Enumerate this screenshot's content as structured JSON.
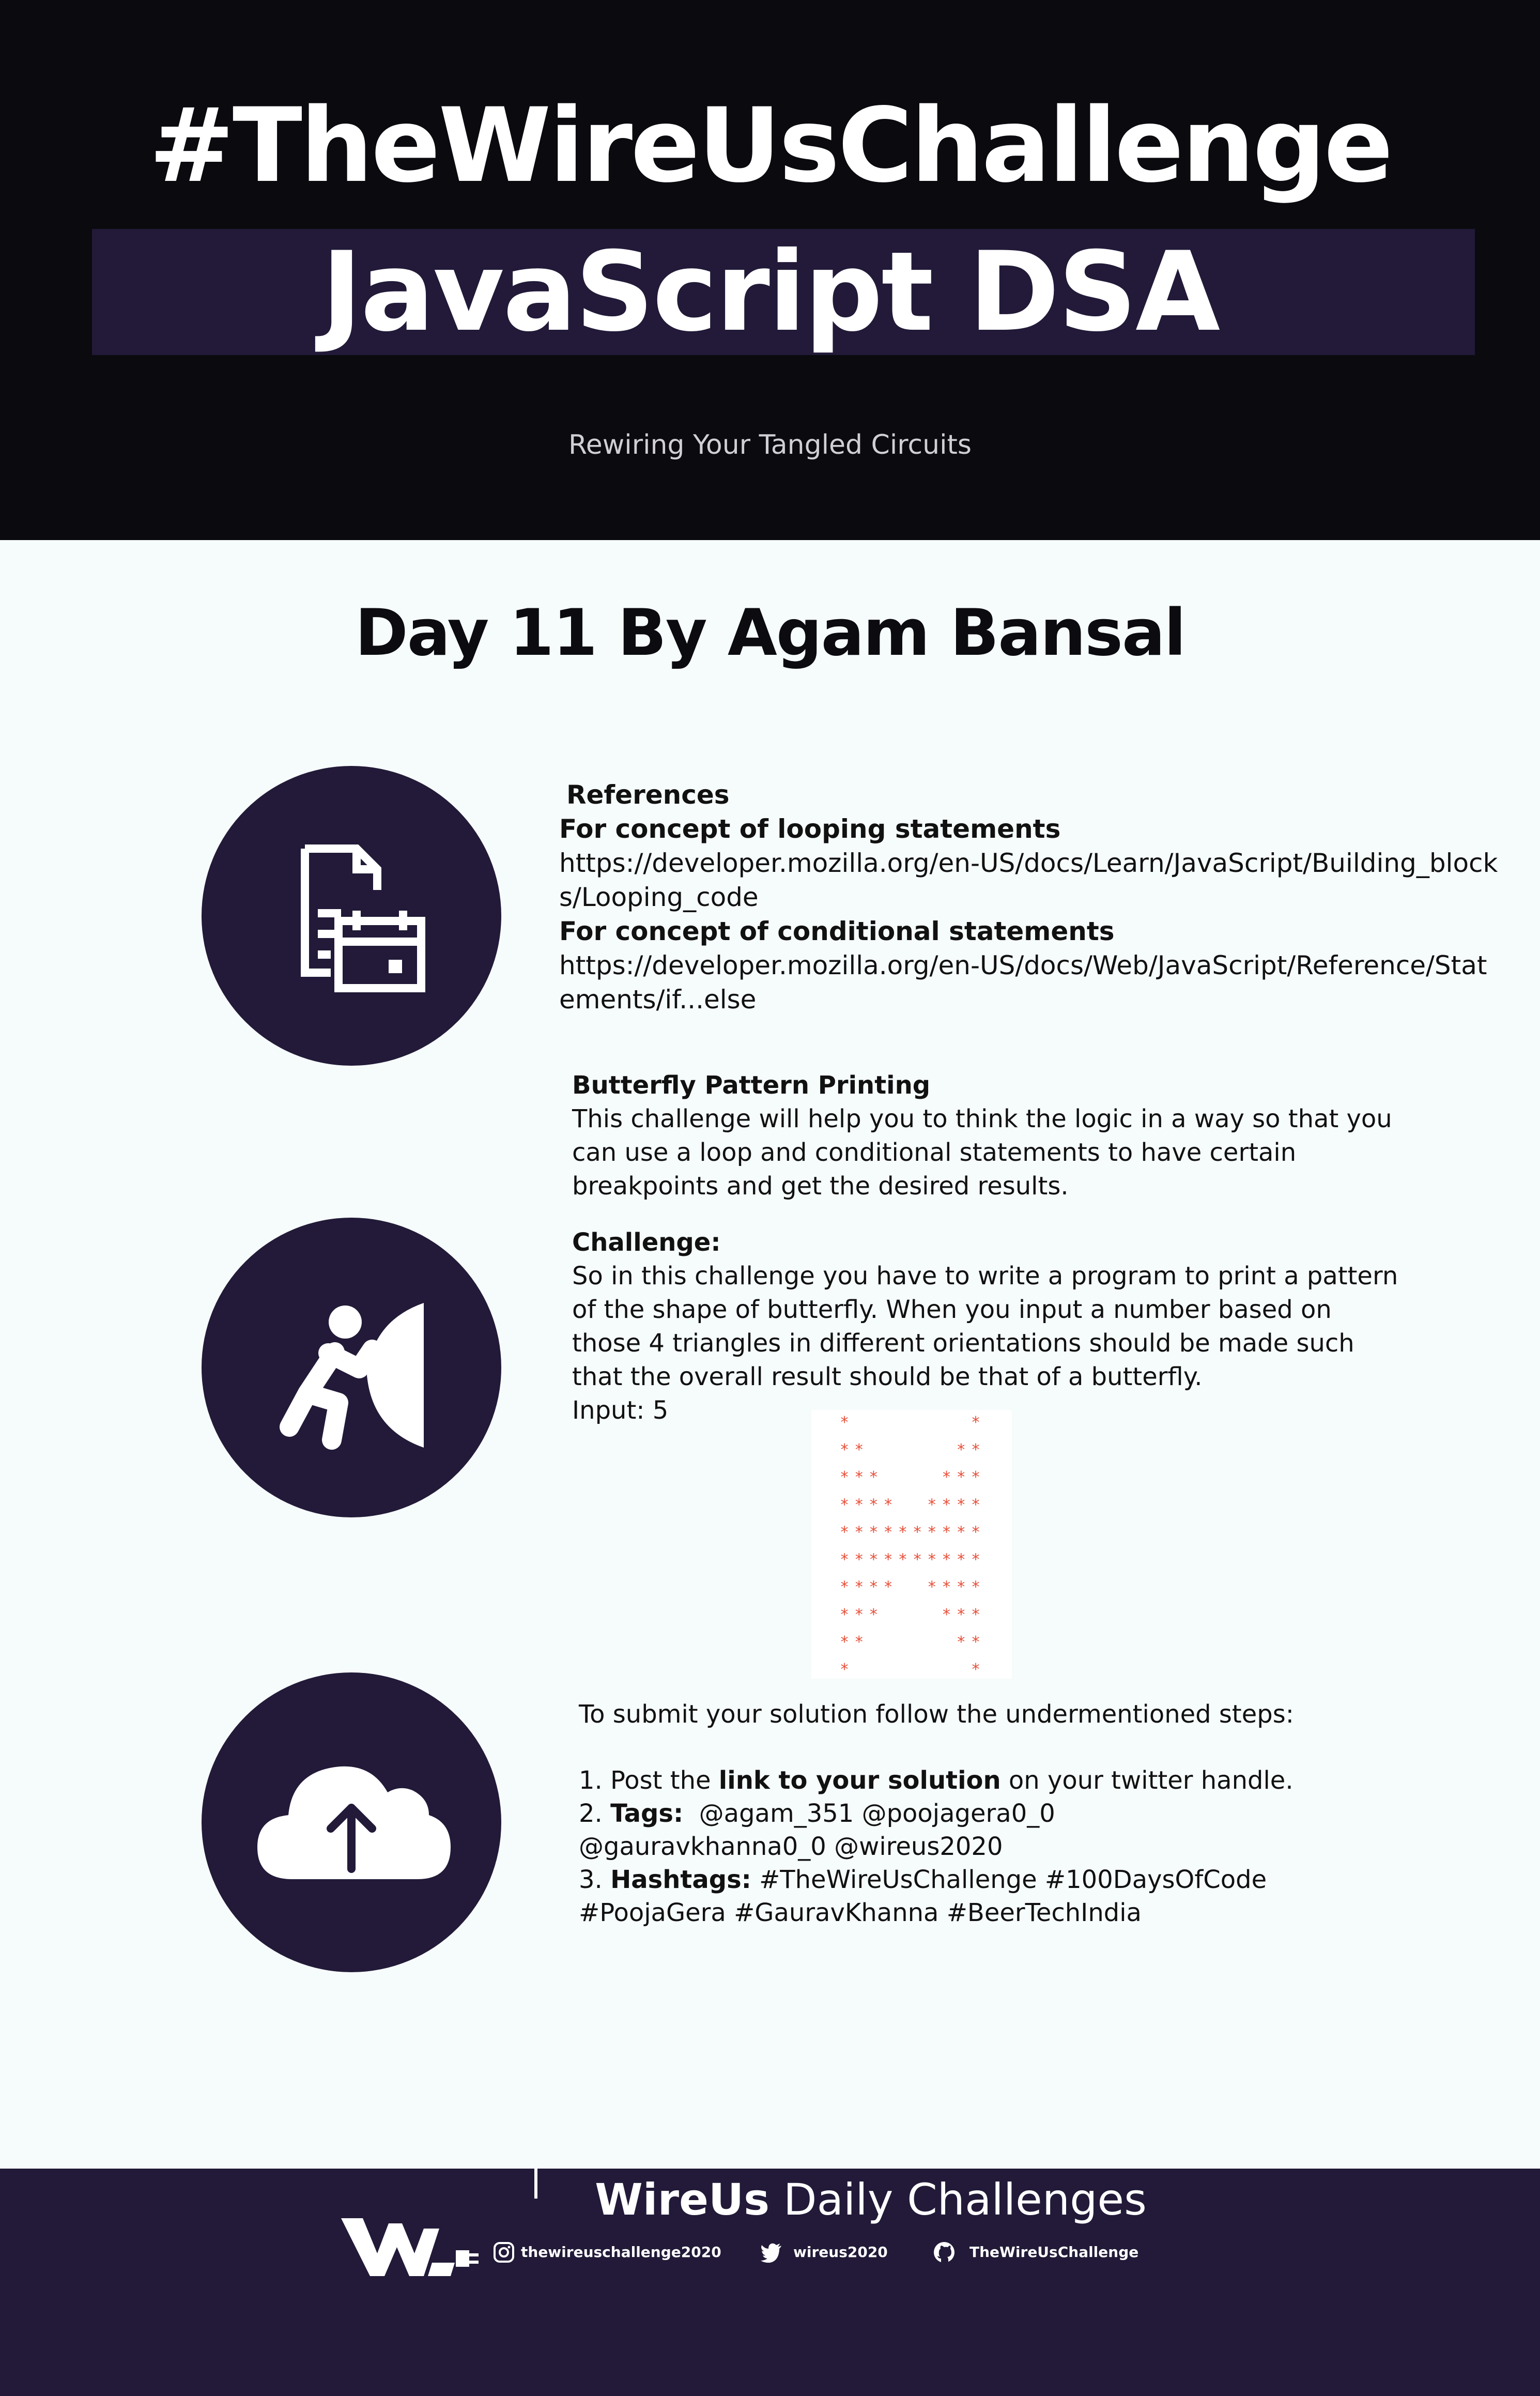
{
  "header": {
    "hashtag_title": "#TheWireUsChallenge",
    "subtitle": "JavaScript DSA",
    "tagline": "Rewiring Your Tangled Circuits"
  },
  "day_title": "Day 11 By Agam Bansal",
  "references": {
    "heading": "References",
    "items": [
      {
        "label": "For concept of looping statements",
        "url": "https://developer.mozilla.org/en-US/docs/Learn/JavaScript/Building_blocks/Looping_code"
      },
      {
        "label": "For concept of conditional statements",
        "url": "https://developer.mozilla.org/en-US/docs/Web/JavaScript/Reference/Statements/if...else"
      }
    ]
  },
  "challenge": {
    "title": "Butterfly Pattern Printing",
    "intro": "This challenge will help you to think the logic in a way so that you can use a loop and conditional statements to have certain breakpoints and get the desired results.",
    "heading": "Challenge:",
    "description": "So in this challenge you have to write a program to print a pattern of the shape of butterfly. When you input a number based on those 4 triangles in different orientations should be made such that the overall result should be that of a butterfly.",
    "input_label": "Input: 5",
    "pattern_input": 5,
    "pattern_color": "#e8503a"
  },
  "submission": {
    "intro": "To submit your solution follow the undermentioned steps:",
    "step1_prefix": "1. Post the ",
    "step1_bold": "link to your solution",
    "step1_suffix": " on your twitter handle.",
    "step2_prefix": "2. ",
    "step2_bold": "Tags:",
    "step2_text": "  @agam_351 @poojagera0_0 @gauravkhanna0_0 @wireus2020",
    "step3_prefix": "3. ",
    "step3_bold": "Hashtags:",
    "step3_text": " #TheWireUsChallenge #100DaysOfCode #PoojaGera #GauravKhanna #BeerTechIndia"
  },
  "footer": {
    "brand": "WireUs",
    "title_rest": " Daily Challenges",
    "instagram": "thewireuschallenge2020",
    "twitter": "wireus2020",
    "github": "TheWireUsChallenge"
  },
  "icons": {
    "section1": "document-calendar-icon",
    "section2": "person-pushing-icon",
    "section3": "cloud-upload-icon"
  },
  "colors": {
    "header_bg": "#0a0a0f",
    "accent_dark": "#221a38",
    "page_bg": "#f6fbfc"
  }
}
